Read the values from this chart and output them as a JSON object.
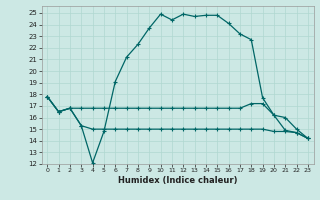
{
  "xlabel": "Humidex (Indice chaleur)",
  "bg_color": "#cce8e4",
  "grid_color": "#b0d8d0",
  "line_color": "#006666",
  "xlim": [
    -0.5,
    23.5
  ],
  "ylim": [
    12,
    25.6
  ],
  "xticks": [
    0,
    1,
    2,
    3,
    4,
    5,
    6,
    7,
    8,
    9,
    10,
    11,
    12,
    13,
    14,
    15,
    16,
    17,
    18,
    19,
    20,
    21,
    22,
    23
  ],
  "yticks": [
    12,
    13,
    14,
    15,
    16,
    17,
    18,
    19,
    20,
    21,
    22,
    23,
    24,
    25
  ],
  "series_main_x": [
    0,
    1,
    2,
    3,
    4,
    5,
    6,
    7,
    8,
    9,
    10,
    11,
    12,
    13,
    14,
    15,
    16,
    17,
    18,
    19,
    20,
    21,
    22,
    23
  ],
  "series_main_y": [
    17.8,
    16.5,
    16.8,
    15.3,
    12.1,
    14.8,
    19.1,
    21.2,
    22.3,
    23.7,
    24.9,
    24.4,
    24.9,
    24.7,
    24.8,
    24.8,
    24.1,
    23.2,
    22.7,
    17.7,
    16.2,
    14.9,
    14.7,
    14.2
  ],
  "series_upper_x": [
    0,
    1,
    2,
    3,
    4,
    5,
    6,
    7,
    8,
    9,
    10,
    11,
    12,
    13,
    14,
    15,
    16,
    17,
    18,
    19,
    20,
    21,
    22,
    23
  ],
  "series_upper_y": [
    17.8,
    16.5,
    16.8,
    16.8,
    16.8,
    16.8,
    16.8,
    16.8,
    16.8,
    16.8,
    16.8,
    16.8,
    16.8,
    16.8,
    16.8,
    16.8,
    16.8,
    16.8,
    17.2,
    17.2,
    16.2,
    16.0,
    15.0,
    14.2
  ],
  "series_lower_x": [
    0,
    1,
    2,
    3,
    4,
    5,
    6,
    7,
    8,
    9,
    10,
    11,
    12,
    13,
    14,
    15,
    16,
    17,
    18,
    19,
    20,
    21,
    22,
    23
  ],
  "series_lower_y": [
    17.8,
    16.5,
    16.8,
    15.3,
    15.0,
    15.0,
    15.0,
    15.0,
    15.0,
    15.0,
    15.0,
    15.0,
    15.0,
    15.0,
    15.0,
    15.0,
    15.0,
    15.0,
    15.0,
    15.0,
    14.8,
    14.8,
    14.7,
    14.2
  ]
}
